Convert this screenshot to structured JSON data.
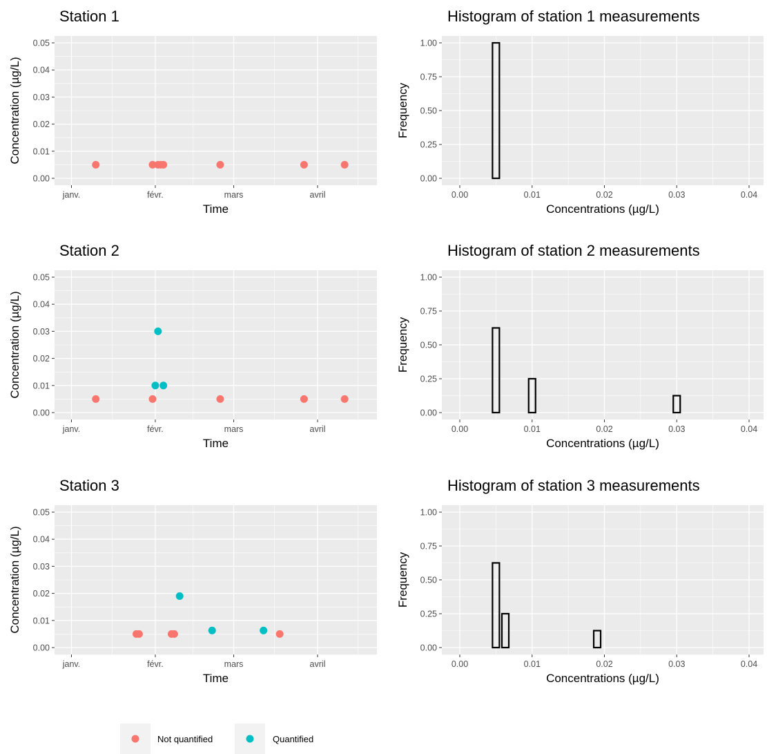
{
  "chart_data": [
    {
      "type": "scatter",
      "title": "Station 1",
      "xlabel": "Time",
      "ylabel": "Concentration (µg/L)",
      "x_ticks": [
        "janv.",
        "févr.",
        "mars",
        "avril"
      ],
      "y_ticks": [
        "0.00",
        "0.01",
        "0.02",
        "0.03",
        "0.04",
        "0.05"
      ],
      "ylim": [
        0,
        0.05
      ],
      "series": [
        {
          "name": "Not quantified",
          "color": "#F8766D",
          "points": [
            {
              "x": "2020-01-10",
              "y": 0.005
            },
            {
              "x": "2020-01-31",
              "y": 0.005
            },
            {
              "x": "2020-02-02",
              "y": 0.005
            },
            {
              "x": "2020-02-03",
              "y": 0.005
            },
            {
              "x": "2020-02-04",
              "y": 0.005
            },
            {
              "x": "2020-02-25",
              "y": 0.005
            },
            {
              "x": "2020-03-27",
              "y": 0.005
            },
            {
              "x": "2020-04-11",
              "y": 0.005
            }
          ]
        },
        {
          "name": "Quantified",
          "color": "#00BFC4",
          "points": []
        }
      ]
    },
    {
      "type": "bar",
      "title": "Histogram of station 1 measurements",
      "xlabel": "Concentrations (µg/L)",
      "ylabel": "Frequency",
      "x_ticks": [
        "0.00",
        "0.01",
        "0.02",
        "0.03",
        "0.04"
      ],
      "y_ticks": [
        "0.00",
        "0.25",
        "0.50",
        "0.75",
        "1.00"
      ],
      "xlim": [
        0,
        0.04
      ],
      "ylim": [
        0,
        1
      ],
      "bars": [
        {
          "x": 0.005,
          "frequency": 1.0
        }
      ]
    },
    {
      "type": "scatter",
      "title": "Station 2",
      "xlabel": "Time",
      "ylabel": "Concentration (µg/L)",
      "x_ticks": [
        "janv.",
        "févr.",
        "mars",
        "avril"
      ],
      "y_ticks": [
        "0.00",
        "0.01",
        "0.02",
        "0.03",
        "0.04",
        "0.05"
      ],
      "ylim": [
        0,
        0.05
      ],
      "series": [
        {
          "name": "Not quantified",
          "color": "#F8766D",
          "points": [
            {
              "x": "2020-01-10",
              "y": 0.005
            },
            {
              "x": "2020-01-31",
              "y": 0.005
            },
            {
              "x": "2020-02-25",
              "y": 0.005
            },
            {
              "x": "2020-03-27",
              "y": 0.005
            },
            {
              "x": "2020-04-11",
              "y": 0.005
            }
          ]
        },
        {
          "name": "Quantified",
          "color": "#00BFC4",
          "points": [
            {
              "x": "2020-02-01",
              "y": 0.01
            },
            {
              "x": "2020-02-02",
              "y": 0.03
            },
            {
              "x": "2020-02-04",
              "y": 0.01
            }
          ]
        }
      ]
    },
    {
      "type": "bar",
      "title": "Histogram of station 2 measurements",
      "xlabel": "Concentrations (µg/L)",
      "ylabel": "Frequency",
      "x_ticks": [
        "0.00",
        "0.01",
        "0.02",
        "0.03",
        "0.04"
      ],
      "y_ticks": [
        "0.00",
        "0.25",
        "0.50",
        "0.75",
        "1.00"
      ],
      "xlim": [
        0,
        0.04
      ],
      "ylim": [
        0,
        1
      ],
      "bars": [
        {
          "x": 0.005,
          "frequency": 0.625
        },
        {
          "x": 0.01,
          "frequency": 0.25
        },
        {
          "x": 0.03,
          "frequency": 0.125
        }
      ]
    },
    {
      "type": "scatter",
      "title": "Station 3",
      "xlabel": "Time",
      "ylabel": "Concentration (µg/L)",
      "x_ticks": [
        "janv.",
        "févr.",
        "mars",
        "avril"
      ],
      "y_ticks": [
        "0.00",
        "0.01",
        "0.02",
        "0.03",
        "0.04",
        "0.05"
      ],
      "ylim": [
        0,
        0.05
      ],
      "series": [
        {
          "name": "Not quantified",
          "color": "#F8766D",
          "points": [
            {
              "x": "2020-01-25",
              "y": 0.005
            },
            {
              "x": "2020-01-26",
              "y": 0.005
            },
            {
              "x": "2020-02-07",
              "y": 0.005
            },
            {
              "x": "2020-02-08",
              "y": 0.005
            },
            {
              "x": "2020-03-18",
              "y": 0.005
            }
          ]
        },
        {
          "name": "Quantified",
          "color": "#00BFC4",
          "points": [
            {
              "x": "2020-02-10",
              "y": 0.019
            },
            {
              "x": "2020-02-22",
              "y": 0.0063
            },
            {
              "x": "2020-03-12",
              "y": 0.0063
            }
          ]
        }
      ]
    },
    {
      "type": "bar",
      "title": "Histogram of station 3 measurements",
      "xlabel": "Concentrations (µg/L)",
      "ylabel": "Frequency",
      "x_ticks": [
        "0.00",
        "0.01",
        "0.02",
        "0.03",
        "0.04"
      ],
      "y_ticks": [
        "0.00",
        "0.25",
        "0.50",
        "0.75",
        "1.00"
      ],
      "xlim": [
        0,
        0.04
      ],
      "ylim": [
        0,
        1
      ],
      "bars": [
        {
          "x": 0.005,
          "frequency": 0.625
        },
        {
          "x": 0.0063,
          "frequency": 0.25
        },
        {
          "x": 0.019,
          "frequency": 0.125
        }
      ]
    }
  ],
  "legend": {
    "position": "bottom",
    "items": [
      {
        "label": "Not quantified",
        "color": "#F8766D"
      },
      {
        "label": "Quantified",
        "color": "#00BFC4"
      }
    ]
  }
}
